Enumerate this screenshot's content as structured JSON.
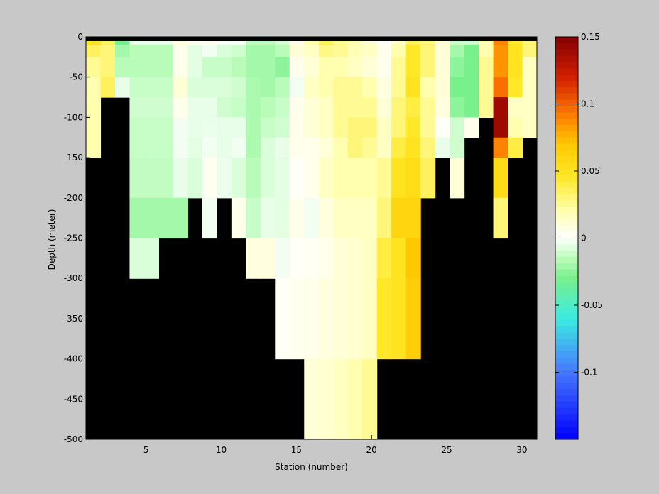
{
  "chart_data": {
    "type": "heatmap",
    "title": "",
    "xlabel": "Station (number)",
    "ylabel": "Depth (meter)",
    "xlim": [
      1,
      31
    ],
    "ylim": [
      -500,
      0
    ],
    "x_ticks": [
      5,
      10,
      15,
      20,
      25,
      30
    ],
    "y_ticks": [
      0,
      -50,
      -100,
      -150,
      -200,
      -250,
      -300,
      -350,
      -400,
      -450,
      -500
    ],
    "colorbar": {
      "range": [
        -0.15,
        0.15
      ],
      "ticks": [
        0.15,
        0.1,
        0.05,
        0,
        -0.05,
        -0.1
      ],
      "colormap": "blue-cyan-green-white-yellow-orange-red"
    },
    "no_data_color": "#000000",
    "depth_levels": [
      0,
      -10,
      -25,
      -50,
      -75,
      -100,
      -125,
      -150,
      -200,
      -250,
      -300,
      -400,
      -500
    ],
    "stations": [
      {
        "station": 1,
        "values": [
          0.05,
          0.035,
          0.025,
          0.02,
          0.02,
          0.02,
          0.02
        ]
      },
      {
        "station": 2,
        "values": [
          0.035,
          0.03,
          0.03,
          0.035
        ]
      },
      {
        "station": 3,
        "values": [
          -0.03,
          -0.02,
          -0.015,
          -0.005
        ]
      },
      {
        "station": 4,
        "values": [
          -0.005,
          -0.015,
          -0.015,
          -0.012,
          -0.01,
          -0.012,
          -0.012,
          -0.013,
          -0.02,
          -0.008
        ]
      },
      {
        "station": 5,
        "values": [
          -0.005,
          -0.015,
          -0.015,
          -0.012,
          -0.01,
          -0.012,
          -0.012,
          -0.013,
          -0.02,
          -0.008
        ]
      },
      {
        "station": 6,
        "values": [
          -0.005,
          -0.015,
          -0.015,
          -0.012,
          -0.01,
          -0.012,
          -0.012,
          -0.013,
          -0.02
        ]
      },
      {
        "station": 7,
        "values": [
          0.01,
          0.005,
          0.005,
          0.01,
          0.005,
          -0.003,
          -0.003,
          -0.005,
          -0.02
        ]
      },
      {
        "station": 8,
        "values": [
          0.005,
          -0.006,
          -0.006,
          -0.008,
          -0.005,
          -0.005,
          -0.006,
          -0.008
        ]
      },
      {
        "station": 9,
        "values": [
          0.005,
          -0.003,
          -0.012,
          -0.008,
          -0.005,
          -0.004,
          -0.003,
          0.004,
          -0.003
        ]
      },
      {
        "station": 10,
        "values": [
          -0.002,
          -0.008,
          -0.012,
          -0.008,
          -0.01,
          -0.005,
          -0.005,
          -0.004
        ]
      },
      {
        "station": 11,
        "values": [
          -0.002,
          -0.01,
          -0.015,
          -0.01,
          -0.012,
          -0.005,
          -0.003,
          -0.008,
          0.005
        ]
      },
      {
        "station": 12,
        "values": [
          -0.015,
          -0.02,
          -0.02,
          -0.018,
          -0.018,
          -0.018,
          -0.018,
          -0.015,
          -0.012,
          0.008
        ]
      },
      {
        "station": 13,
        "values": [
          -0.015,
          -0.02,
          -0.02,
          -0.02,
          -0.015,
          -0.012,
          -0.008,
          -0.008,
          -0.005,
          0.008
        ]
      },
      {
        "station": 14,
        "values": [
          -0.01,
          -0.015,
          -0.025,
          -0.015,
          -0.012,
          -0.01,
          -0.005,
          -0.006,
          -0.006,
          -0.003,
          0.002
        ]
      },
      {
        "station": 15,
        "values": [
          0.005,
          0.01,
          0.005,
          -0.003,
          0.005,
          0.005,
          0.005,
          0.002,
          0.005,
          0.002,
          0.004
        ]
      },
      {
        "station": 16,
        "values": [
          0.02,
          0.015,
          0.01,
          0.015,
          0.01,
          0.01,
          0.005,
          0.005,
          -0.003,
          0.003,
          0.005,
          0.01
        ]
      },
      {
        "station": 17,
        "values": [
          0.035,
          0.028,
          0.02,
          0.02,
          0.015,
          0.015,
          0.01,
          0.015,
          0.008,
          0.005,
          0.008,
          0.012
        ]
      },
      {
        "station": 18,
        "values": [
          0.025,
          0.025,
          0.02,
          0.025,
          0.025,
          0.025,
          0.02,
          0.02,
          0.015,
          0.01,
          0.01,
          0.015
        ]
      },
      {
        "station": 19,
        "values": [
          0.02,
          0.018,
          0.015,
          0.025,
          0.025,
          0.03,
          0.03,
          0.02,
          0.015,
          0.012,
          0.012,
          0.02
        ]
      },
      {
        "station": 20,
        "values": [
          0.01,
          0.015,
          0.01,
          0.02,
          0.025,
          0.03,
          0.025,
          0.02,
          0.015,
          0.015,
          0.015,
          0.025
        ]
      },
      {
        "station": 21,
        "values": [
          0.002,
          0.005,
          0.005,
          0.008,
          0.01,
          0.015,
          0.015,
          0.025,
          0.03,
          0.04,
          0.045
        ]
      },
      {
        "station": 22,
        "values": [
          0.015,
          0.02,
          0.025,
          0.025,
          0.03,
          0.03,
          0.04,
          0.05,
          0.06,
          0.05,
          0.05
        ]
      },
      {
        "station": 23,
        "values": [
          0.035,
          0.045,
          0.045,
          0.05,
          0.04,
          0.045,
          0.05,
          0.055,
          0.06,
          0.07,
          0.065
        ]
      },
      {
        "station": 24,
        "values": [
          0.03,
          0.03,
          0.03,
          0.02,
          0.025,
          0.025,
          0.03,
          0.035
        ]
      },
      {
        "station": 25,
        "values": [
          0.01,
          0.01,
          0.01,
          0.01,
          0.008,
          0.002,
          -0.005
        ]
      },
      {
        "station": 26,
        "values": [
          -0.012,
          -0.02,
          -0.025,
          -0.03,
          -0.025,
          -0.01,
          -0.01,
          0.01
        ]
      },
      {
        "station": 27,
        "values": [
          -0.012,
          -0.03,
          -0.03,
          -0.03,
          -0.03,
          0.005
        ]
      },
      {
        "station": 28,
        "values": [
          0.02,
          0.02,
          0.025,
          0.025,
          0.025
        ]
      },
      {
        "station": 29,
        "values": [
          0.09,
          0.085,
          0.085,
          0.095,
          0.14,
          0.14,
          0.09,
          0.055,
          0.03
        ]
      },
      {
        "station": 30,
        "values": [
          0.045,
          0.05,
          0.05,
          0.045,
          0.015,
          0.02,
          0.04
        ]
      },
      {
        "station": 31,
        "values": [
          0.03,
          0.03,
          0.015,
          0.015,
          0.015,
          0.015
        ]
      }
    ]
  }
}
